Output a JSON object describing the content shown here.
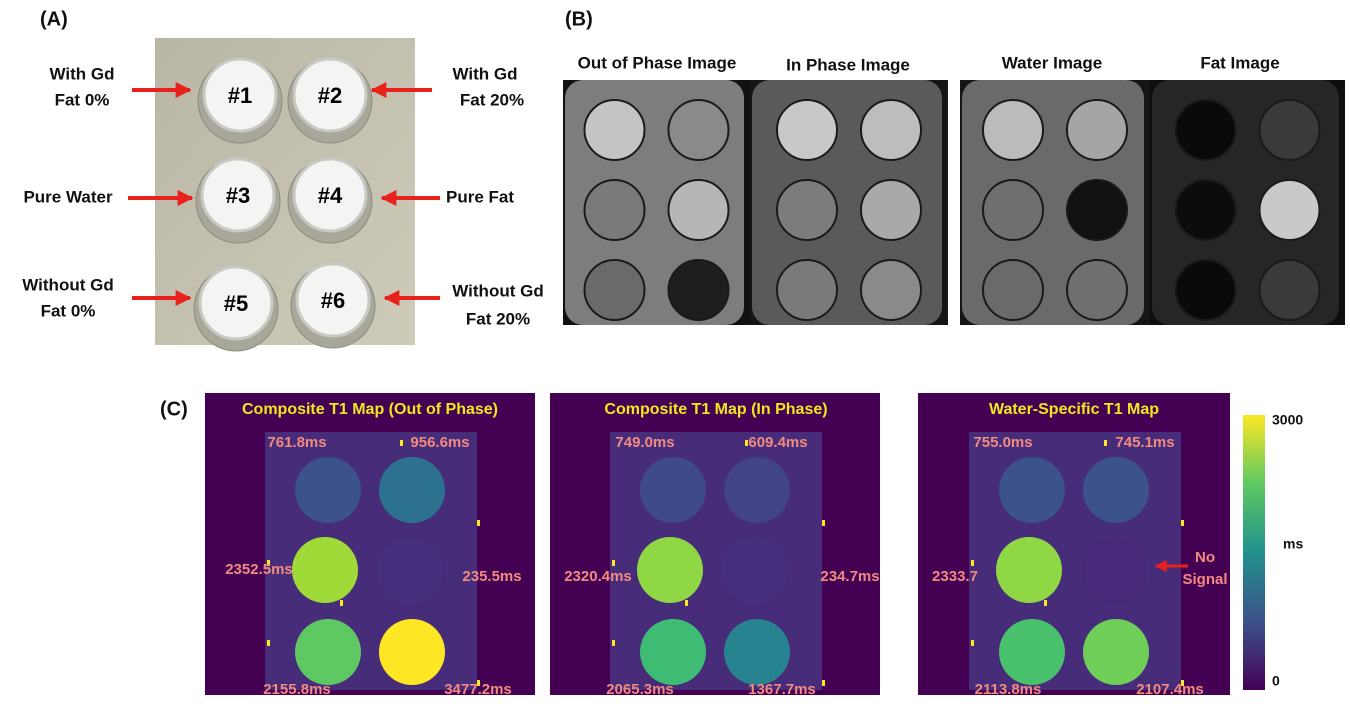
{
  "panel_a": {
    "label": "(A)",
    "vials": [
      "#1",
      "#2",
      "#3",
      "#4",
      "#5",
      "#6"
    ],
    "annotations": [
      [
        "With Gd",
        "Fat 0%"
      ],
      [
        "With Gd",
        "Fat 20%"
      ],
      [
        "Pure Water"
      ],
      [
        "Pure Fat"
      ],
      [
        "Without Gd",
        "Fat 0%"
      ],
      [
        "Without Gd",
        "Fat 20%"
      ]
    ]
  },
  "panel_b": {
    "label": "(B)",
    "titles": [
      "Out of Phase Image",
      "In Phase Image",
      "Water Image",
      "Fat Image"
    ]
  },
  "panel_c": {
    "label": "(C)",
    "maps": [
      {
        "title": "Composite T1 Map (Out of Phase)",
        "values": [
          "761.8ms",
          "956.6ms",
          "2352.5ms",
          "235.5ms",
          "2155.8ms",
          "3477.2ms"
        ]
      },
      {
        "title": "Composite T1 Map (In Phase)",
        "values": [
          "749.0ms",
          "609.4ms",
          "2320.4ms",
          "234.7ms",
          "2065.3ms",
          "1367.7ms"
        ]
      },
      {
        "title": "Water-Specific T1 Map",
        "values": [
          "755.0ms",
          "745.1ms",
          "2333.7",
          "2113.8ms",
          "2107.4ms"
        ]
      }
    ],
    "annotation": [
      "No",
      "Signal"
    ],
    "colorbar": {
      "max": "3000",
      "unit": "ms",
      "min": "0"
    }
  }
}
